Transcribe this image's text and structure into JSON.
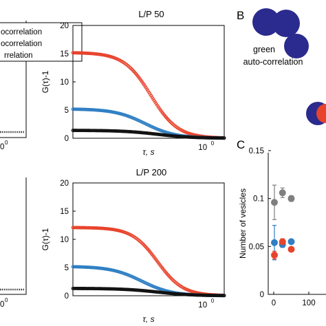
{
  "figure": {
    "panel_letters": [
      "B",
      "C"
    ],
    "legend_fragments": [
      "ocorrelation",
      "ocorrelation",
      "rrelation"
    ],
    "note_b": [
      "green",
      "auto-correlation"
    ],
    "left_partial_ticks": [
      "0",
      "0"
    ]
  },
  "chart_data": [
    {
      "type": "scatter",
      "title": "L/P 50",
      "xlabel": "τ, s",
      "ylabel": "G(τ)-1",
      "xscale": "log",
      "xlim": [
        0.003,
        2.2
      ],
      "ylim": [
        0,
        20
      ],
      "yticks": [
        "0",
        "5",
        "10",
        "15",
        "20"
      ],
      "xticks": [
        {
          "value": 1,
          "label": "10",
          "exp": "0"
        }
      ],
      "colors": {
        "red": "#e8432c",
        "blue": "#2f7fc3",
        "black": "#111111"
      },
      "series": [
        {
          "color": "red",
          "plateau": 15.2,
          "tau_half": 0.09,
          "steep": 1.7
        },
        {
          "color": "blue",
          "plateau": 5.2,
          "tau_half": 0.07,
          "steep": 1.5
        },
        {
          "color": "black",
          "plateau": 1.4,
          "tau_half": 0.12,
          "steep": 1.3
        }
      ]
    },
    {
      "type": "scatter",
      "title": "L/P 200",
      "xlabel": "τ, s",
      "ylabel": "G(τ)-1",
      "xscale": "log",
      "xlim": [
        0.003,
        2.2
      ],
      "ylim": [
        0,
        20
      ],
      "yticks": [
        "0",
        "5",
        "10",
        "15",
        "20"
      ],
      "xticks": [
        {
          "value": 1,
          "label": "10",
          "exp": "0"
        }
      ],
      "colors": {
        "red": "#e8432c",
        "blue": "#2f7fc3",
        "black": "#111111"
      },
      "series": [
        {
          "color": "red",
          "plateau": 12.1,
          "tau_half": 0.12,
          "steep": 1.8
        },
        {
          "color": "blue",
          "plateau": 5.2,
          "tau_half": 0.06,
          "steep": 1.5
        },
        {
          "color": "black",
          "plateau": 1.3,
          "tau_half": 0.12,
          "steep": 1.3
        }
      ]
    },
    {
      "type": "scatter",
      "ylabel": "Number of vesicles",
      "xlim": [
        0,
        110
      ],
      "ylim": [
        0,
        0.15
      ],
      "yticks": [
        "0",
        "0.05",
        "0.1",
        "0.15"
      ],
      "xticks": [
        "0",
        "100"
      ],
      "colors": {
        "grey": "#7f7f7f",
        "blue": "#2f7fc3",
        "red": "#e8432c"
      },
      "series": [
        {
          "color": "grey",
          "points": [
            {
              "x": 2,
              "y": 0.096,
              "err": 0.018
            },
            {
              "x": 25,
              "y": 0.106,
              "err": 0.005
            },
            {
              "x": 50,
              "y": 0.1,
              "err": 0.003
            }
          ]
        },
        {
          "color": "blue",
          "points": [
            {
              "x": 2,
              "y": 0.054,
              "err": 0.018
            },
            {
              "x": 25,
              "y": 0.052,
              "err": 0.003
            },
            {
              "x": 50,
              "y": 0.055,
              "err": 0.002
            }
          ]
        },
        {
          "color": "red",
          "points": [
            {
              "x": 2,
              "y": 0.041,
              "err": 0.004
            },
            {
              "x": 25,
              "y": 0.055,
              "err": 0.003
            },
            {
              "x": 50,
              "y": 0.047,
              "err": 0.002
            }
          ]
        }
      ]
    }
  ]
}
